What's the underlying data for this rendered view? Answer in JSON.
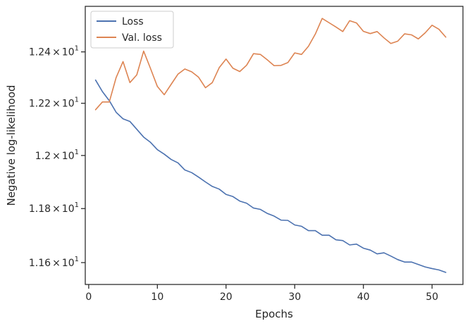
{
  "chart_data": {
    "type": "line",
    "xlabel": "Epochs",
    "ylabel": "Negative log-likelihood",
    "x_ticks": [
      0,
      10,
      20,
      30,
      40,
      50
    ],
    "y_ticks": [
      11.6,
      11.8,
      12.0,
      12.2,
      12.4
    ],
    "y_tick_labels": [
      {
        "mantissa": "1.16",
        "times": "×",
        "base": "10",
        "exp": "1"
      },
      {
        "mantissa": "1.18",
        "times": "×",
        "base": "10",
        "exp": "1"
      },
      {
        "mantissa": "1.2",
        "times": "×",
        "base": "10",
        "exp": "1"
      },
      {
        "mantissa": "1.22",
        "times": "×",
        "base": "10",
        "exp": "1"
      },
      {
        "mantissa": "1.24",
        "times": "×",
        "base": "10",
        "exp": "1"
      }
    ],
    "xlim": [
      -0.5,
      54.5
    ],
    "ylim": [
      11.52,
      12.58
    ],
    "y_scale": "log",
    "grid": false,
    "legend_position": "top-left",
    "x": [
      1,
      2,
      3,
      4,
      5,
      6,
      7,
      8,
      9,
      10,
      11,
      12,
      13,
      14,
      15,
      16,
      17,
      18,
      19,
      20,
      21,
      22,
      23,
      24,
      25,
      26,
      27,
      28,
      29,
      30,
      31,
      32,
      33,
      34,
      35,
      36,
      37,
      38,
      39,
      40,
      41,
      42,
      43,
      44,
      45,
      46,
      47,
      48,
      49,
      50,
      51,
      52
    ],
    "series": [
      {
        "name": "Loss",
        "color": "#4c72b0",
        "values": [
          12.29,
          12.245,
          12.21,
          12.165,
          12.14,
          12.13,
          12.1,
          12.07,
          12.05,
          12.022,
          12.005,
          11.985,
          11.972,
          11.945,
          11.935,
          11.918,
          11.9,
          11.883,
          11.873,
          11.853,
          11.845,
          11.828,
          11.82,
          11.802,
          11.797,
          11.782,
          11.772,
          11.757,
          11.756,
          11.739,
          11.734,
          11.718,
          11.718,
          11.701,
          11.701,
          11.684,
          11.681,
          11.665,
          11.668,
          11.653,
          11.646,
          11.632,
          11.636,
          11.624,
          11.611,
          11.602,
          11.602,
          11.593,
          11.584,
          11.578,
          11.573,
          11.564
        ]
      },
      {
        "name": "Val. loss",
        "color": "#dd8452",
        "values": [
          12.175,
          12.205,
          12.205,
          12.3,
          12.362,
          12.28,
          12.31,
          12.403,
          12.335,
          12.265,
          12.233,
          12.273,
          12.313,
          12.333,
          12.322,
          12.301,
          12.26,
          12.28,
          12.338,
          12.372,
          12.336,
          12.323,
          12.348,
          12.393,
          12.39,
          12.369,
          12.346,
          12.347,
          12.358,
          12.396,
          12.39,
          12.422,
          12.47,
          12.532,
          12.515,
          12.498,
          12.48,
          12.523,
          12.514,
          12.481,
          12.472,
          12.48,
          12.455,
          12.433,
          12.442,
          12.471,
          12.467,
          12.451,
          12.475,
          12.505,
          12.489,
          12.458
        ]
      }
    ]
  }
}
